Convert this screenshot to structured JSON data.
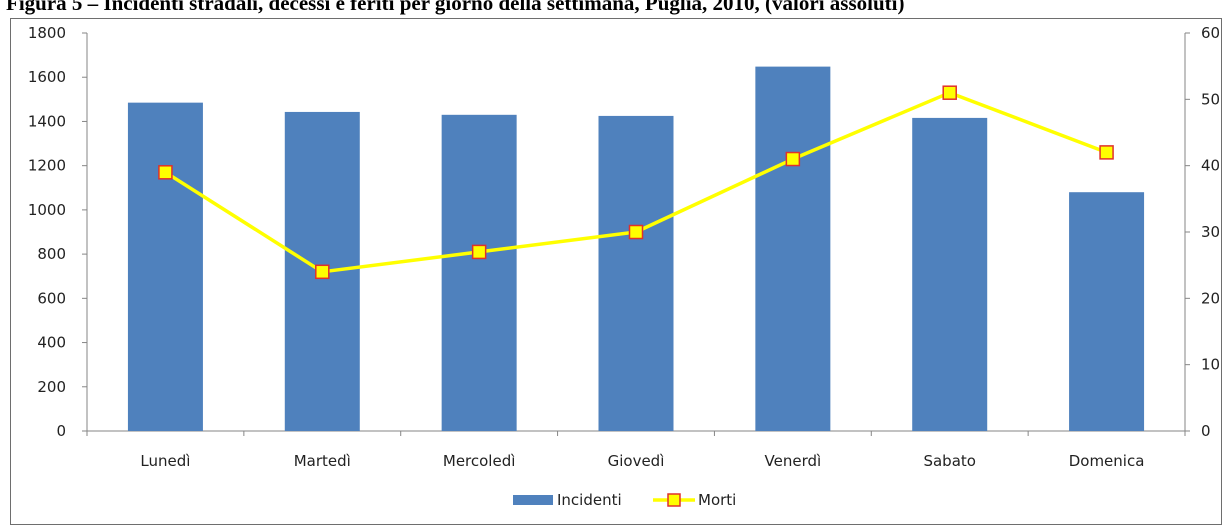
{
  "title": "Figura 5 – Incidenti stradali, decessi e feriti per giorno della settimana, Puglia, 2010, (valori assoluti)",
  "chart_data": {
    "type": "bar",
    "categories": [
      "Lunedì",
      "Martedì",
      "Mercoledì",
      "Giovedì",
      "Venerdì",
      "Sabato",
      "Domenica"
    ],
    "series": [
      {
        "name": "Incidenti",
        "type": "bar",
        "axis": "left",
        "color": "#4f81bd",
        "values": [
          1485,
          1443,
          1430,
          1425,
          1648,
          1416,
          1080
        ]
      },
      {
        "name": "Morti",
        "type": "line",
        "axis": "right",
        "color": "#ffff00",
        "marker_fill": "#ffff00",
        "marker_stroke": "#e0312b",
        "values": [
          39,
          24,
          27,
          30,
          41,
          51,
          42
        ]
      }
    ],
    "y_left": {
      "min": 0,
      "max": 1800,
      "step": 200,
      "ticks": [
        "0",
        "200",
        "400",
        "600",
        "800",
        "1000",
        "1200",
        "1400",
        "1600",
        "1800"
      ]
    },
    "y_right": {
      "min": 0,
      "max": 60,
      "step": 10,
      "ticks": [
        "0",
        "10",
        "20",
        "30",
        "40",
        "50",
        "60"
      ]
    },
    "grid": false,
    "legend": "bottom"
  }
}
